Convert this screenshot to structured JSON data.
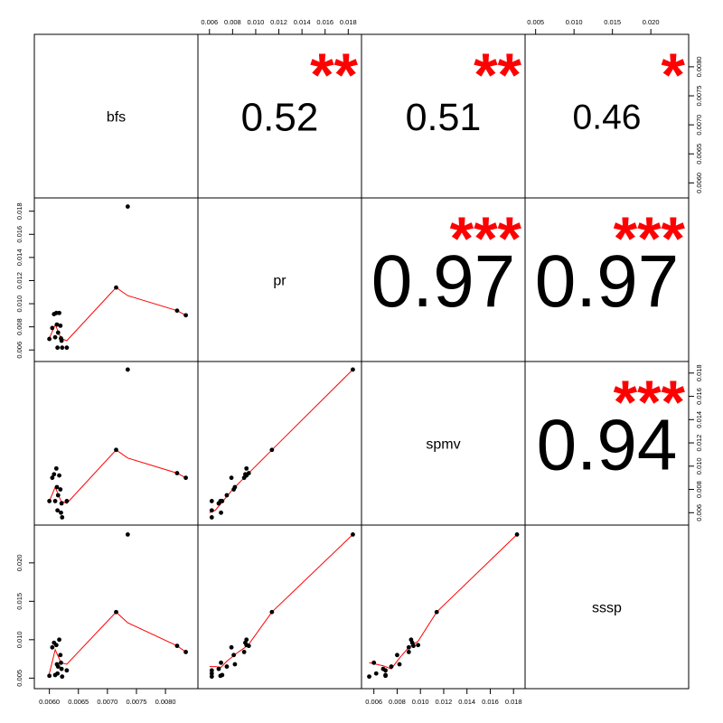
{
  "chart_data": {
    "type": "scatter",
    "variables": [
      "bfs",
      "pr",
      "spmv",
      "sssp"
    ],
    "axes": {
      "bfs": {
        "range": [
          0.00585,
          0.00845
        ],
        "ticks": [
          "0.0060",
          "0.0065",
          "0.0070",
          "0.0075",
          "0.0080"
        ]
      },
      "pr": {
        "range": [
          0.00555,
          0.0186
        ],
        "ticks": [
          "0.006",
          "0.008",
          "0.010",
          "0.012",
          "0.014",
          "0.016",
          "0.018"
        ]
      },
      "spmv": {
        "range": [
          0.00548,
          0.01845
        ],
        "ticks": [
          "0.006",
          "0.008",
          "0.010",
          "0.012",
          "0.014",
          "0.016",
          "0.018"
        ]
      },
      "sssp": {
        "range": [
          0.00445,
          0.0241
        ],
        "ticks": [
          "0.005",
          "0.010",
          "0.015",
          "0.020"
        ]
      }
    },
    "observations": [
      {
        "bfs": 0.006,
        "pr": 0.00695,
        "spmv": 0.007,
        "sssp": 0.0053
      },
      {
        "bfs": 0.00605,
        "pr": 0.0079,
        "spmv": 0.009,
        "sssp": 0.009
      },
      {
        "bfs": 0.00608,
        "pr": 0.0091,
        "spmv": 0.0093,
        "sssp": 0.0096
      },
      {
        "bfs": 0.0061,
        "pr": 0.0071,
        "spmv": 0.007,
        "sssp": 0.0054
      },
      {
        "bfs": 0.00612,
        "pr": 0.0092,
        "spmv": 0.0098,
        "sssp": 0.0093
      },
      {
        "bfs": 0.00613,
        "pr": 0.0082,
        "spmv": 0.0082,
        "sssp": 0.0068
      },
      {
        "bfs": 0.00614,
        "pr": 0.0062,
        "spmv": 0.0062,
        "sssp": 0.0056
      },
      {
        "bfs": 0.00615,
        "pr": 0.0075,
        "spmv": 0.0075,
        "sssp": 0.0065
      },
      {
        "bfs": 0.00617,
        "pr": 0.0092,
        "spmv": 0.0092,
        "sssp": 0.01
      },
      {
        "bfs": 0.00619,
        "pr": 0.0081,
        "spmv": 0.008,
        "sssp": 0.008
      },
      {
        "bfs": 0.0062,
        "pr": 0.007,
        "spmv": 0.006,
        "sssp": 0.007
      },
      {
        "bfs": 0.00621,
        "pr": 0.0068,
        "spmv": 0.0068,
        "sssp": 0.0062
      },
      {
        "bfs": 0.00622,
        "pr": 0.0062,
        "spmv": 0.0056,
        "sssp": 0.0052
      },
      {
        "bfs": 0.0063,
        "pr": 0.0062,
        "spmv": 0.007,
        "sssp": 0.006
      },
      {
        "bfs": 0.00715,
        "pr": 0.0114,
        "spmv": 0.0114,
        "sssp": 0.0136
      },
      {
        "bfs": 0.00735,
        "pr": 0.0184,
        "spmv": 0.0183,
        "sssp": 0.0237
      },
      {
        "bfs": 0.0082,
        "pr": 0.0094,
        "spmv": 0.0094,
        "sssp": 0.0092
      },
      {
        "bfs": 0.00835,
        "pr": 0.009,
        "spmv": 0.009,
        "sssp": 0.0084
      }
    ],
    "smooth_lines": {
      "bfs": {
        "x": [
          0.006,
          0.0061,
          0.0062,
          0.0063,
          0.00715,
          0.00735,
          0.0082,
          0.00835
        ],
        "pr": [
          0.007,
          0.0082,
          0.007,
          0.0068,
          0.0114,
          0.0107,
          0.0094,
          0.009
        ],
        "spmv": [
          0.007,
          0.0082,
          0.007,
          0.0068,
          0.0114,
          0.0107,
          0.0094,
          0.009
        ],
        "sssp": [
          0.0056,
          0.0087,
          0.007,
          0.0068,
          0.0136,
          0.0122,
          0.0092,
          0.0084
        ]
      },
      "pr": {
        "x": [
          0.006,
          0.0065,
          0.007,
          0.0075,
          0.008,
          0.0085,
          0.009,
          0.0095,
          0.0114,
          0.0184
        ],
        "spmv": [
          0.006,
          0.0062,
          0.0068,
          0.0074,
          0.008,
          0.0085,
          0.009,
          0.0095,
          0.0114,
          0.0183
        ],
        "sssp": [
          0.0065,
          0.0065,
          0.0064,
          0.0072,
          0.0078,
          0.0084,
          0.0089,
          0.0096,
          0.0136,
          0.0237
        ]
      },
      "spmv": {
        "x": [
          0.0056,
          0.0062,
          0.0068,
          0.0075,
          0.0082,
          0.009,
          0.0098,
          0.0114,
          0.0183
        ],
        "sssp": [
          0.007,
          0.0068,
          0.0066,
          0.0062,
          0.0076,
          0.009,
          0.0098,
          0.0136,
          0.0237
        ]
      }
    },
    "correlations": [
      {
        "row": "bfs",
        "col": "pr",
        "value": "0.52",
        "stars": "**"
      },
      {
        "row": "bfs",
        "col": "spmv",
        "value": "0.51",
        "stars": "**"
      },
      {
        "row": "bfs",
        "col": "sssp",
        "value": "0.46",
        "stars": "*"
      },
      {
        "row": "pr",
        "col": "spmv",
        "value": "0.97",
        "stars": "***"
      },
      {
        "row": "pr",
        "col": "sssp",
        "value": "0.97",
        "stars": "***"
      },
      {
        "row": "spmv",
        "col": "sssp",
        "value": "0.94",
        "stars": "***"
      }
    ],
    "colors": {
      "points": "#000000",
      "smooth": "#ff0000",
      "stars": "#ff0000",
      "correlation_text": "#000000",
      "frame": "#000000"
    }
  }
}
